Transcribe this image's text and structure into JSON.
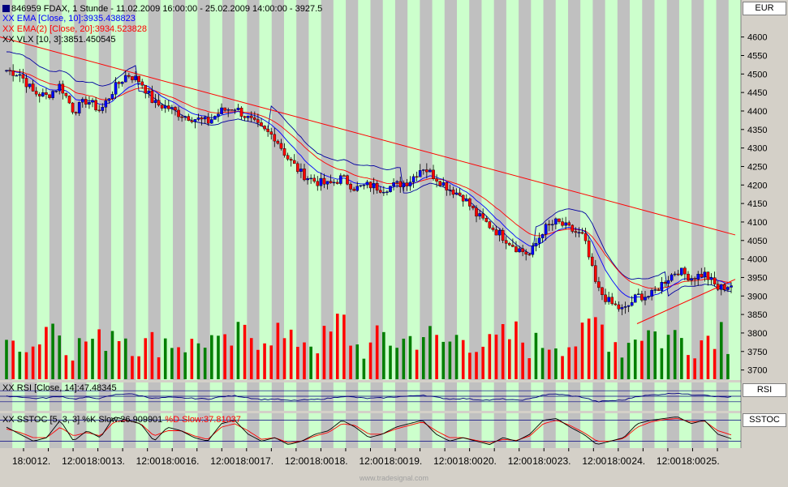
{
  "header": {
    "instrument_line": "846959  FDAX, 1 Stunde - 11.02.2009 16:00:00 - 25.02.2009 14:00:00 - 3927.5",
    "currency": "EUR"
  },
  "indicators": {
    "ema10": {
      "label": "XX EMA [Close, 10]:3935.438823",
      "color": "#0000ff"
    },
    "ema20": {
      "label": "XX EMA(2) [Close, 20]:3934.523828",
      "color": "#ff0000"
    },
    "vlx": {
      "label": "XX VLX [10, 3]:3851.450545",
      "color": "#000000"
    },
    "rsi": {
      "label": "XX RSI [Close, 14]:47.48345",
      "axis": "RSI"
    },
    "sstoc": {
      "label_k": "XX SSTOC [5, 3, 3] %K Slow:26.909901",
      "label_d": "%D Slow:37.81037",
      "axis": "SSTOC"
    }
  },
  "watermark": "www.tradesignal.com",
  "colors": {
    "up": "#0000ff",
    "down": "#ff0000",
    "band_green": "#ccffcc",
    "band_gray": "#c0c0c0",
    "trendline": "#ff0000",
    "vol_up": "#007f00",
    "vol_down": "#ff0000"
  },
  "chart_data": {
    "type": "candlestick",
    "title": "FDAX, 1 Stunde",
    "ylim": [
      3675,
      4700
    ],
    "y_ticks": [
      "4600",
      "4550",
      "4500",
      "4450",
      "4400",
      "4350",
      "4300",
      "4250",
      "4200",
      "4150",
      "4100",
      "4050",
      "4000",
      "3950",
      "3900",
      "3850",
      "3800",
      "3750",
      "3700"
    ],
    "x_tick_labels": [
      "18:00",
      "12.",
      "12:00",
      "18:00",
      "13.",
      "12:00",
      "18:00",
      "16.",
      "12:00",
      "18:00",
      "17.",
      "12:00",
      "18:00",
      "18.",
      "12:00",
      "18:00",
      "19.",
      "12:00",
      "18:00",
      "20.",
      "12:00",
      "18:00",
      "23.",
      "12:00",
      "18:00",
      "24.",
      "12:00",
      "18:00",
      "25."
    ],
    "close_anchors": [
      4510,
      4500,
      4450,
      4440,
      4470,
      4400,
      4430,
      4400,
      4460,
      4500,
      4480,
      4420,
      4410,
      4390,
      4380,
      4370,
      4400,
      4410,
      4380,
      4350,
      4330,
      4270,
      4230,
      4210,
      4200,
      4220,
      4190,
      4200,
      4190,
      4200,
      4210,
      4250,
      4220,
      4190,
      4170,
      4120,
      4090,
      4060,
      4030,
      4010,
      4080,
      4100,
      4080,
      4060,
      3920,
      3880,
      3860,
      3900,
      3900,
      3940,
      3970,
      3950,
      3960,
      3920,
      3930
    ],
    "volume_anchors": [
      40,
      60,
      45,
      80,
      70,
      40,
      55,
      50,
      75,
      60,
      45,
      50,
      55,
      50,
      45,
      60,
      40,
      55,
      60,
      65,
      70,
      45,
      60,
      50,
      55,
      80,
      45,
      40,
      60,
      50,
      55,
      65,
      50,
      50,
      60,
      55,
      45,
      55,
      60,
      45,
      50,
      55,
      50,
      55,
      80,
      60,
      40,
      70,
      65,
      55,
      60,
      50,
      55,
      80,
      45
    ],
    "rsi_anchors": [
      50,
      48,
      42,
      44,
      50,
      40,
      46,
      42,
      55,
      60,
      52,
      42,
      46,
      44,
      42,
      40,
      48,
      52,
      45,
      38,
      40,
      34,
      36,
      38,
      42,
      50,
      46,
      42,
      44,
      48,
      50,
      55,
      46,
      40,
      42,
      38,
      36,
      40,
      35,
      40,
      55,
      58,
      52,
      46,
      30,
      34,
      36,
      50,
      54,
      58,
      62,
      55,
      56,
      48,
      47
    ],
    "stoch_k_anchors": [
      60,
      40,
      20,
      30,
      80,
      20,
      50,
      30,
      90,
      80,
      70,
      20,
      60,
      50,
      30,
      20,
      70,
      80,
      40,
      20,
      30,
      10,
      20,
      40,
      50,
      80,
      60,
      30,
      40,
      60,
      70,
      80,
      40,
      20,
      30,
      20,
      10,
      30,
      20,
      40,
      80,
      85,
      60,
      40,
      10,
      20,
      30,
      70,
      80,
      85,
      90,
      70,
      80,
      40,
      27
    ],
    "stoch_d_anchors": [
      55,
      45,
      30,
      30,
      60,
      35,
      45,
      35,
      75,
      80,
      70,
      35,
      50,
      50,
      35,
      25,
      60,
      70,
      50,
      25,
      30,
      15,
      20,
      35,
      45,
      70,
      65,
      40,
      40,
      55,
      65,
      75,
      50,
      30,
      30,
      22,
      15,
      25,
      22,
      35,
      70,
      80,
      65,
      45,
      20,
      20,
      28,
      60,
      75,
      82,
      85,
      75,
      78,
      50,
      38
    ]
  }
}
